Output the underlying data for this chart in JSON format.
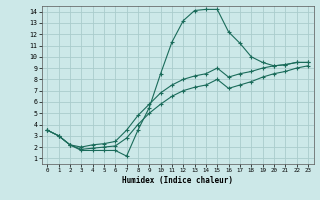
{
  "xlabel": "Humidex (Indice chaleur)",
  "bg_color": "#cce8e8",
  "grid_color": "#aacccc",
  "line_color": "#1a6b5a",
  "xlim": [
    -0.5,
    23.5
  ],
  "ylim": [
    0.5,
    14.5
  ],
  "xticks": [
    0,
    1,
    2,
    3,
    4,
    5,
    6,
    7,
    8,
    9,
    10,
    11,
    12,
    13,
    14,
    15,
    16,
    17,
    18,
    19,
    20,
    21,
    22,
    23
  ],
  "yticks": [
    1,
    2,
    3,
    4,
    5,
    6,
    7,
    8,
    9,
    10,
    11,
    12,
    13,
    14
  ],
  "curve1_x": [
    0,
    1,
    2,
    3,
    4,
    5,
    6,
    7,
    8,
    9,
    10,
    11,
    12,
    13,
    14,
    15,
    16,
    17,
    18,
    19,
    20,
    21,
    22,
    23
  ],
  "curve1_y": [
    3.5,
    3.0,
    2.2,
    1.7,
    1.7,
    1.7,
    1.7,
    1.2,
    3.5,
    5.5,
    8.5,
    11.3,
    13.2,
    14.1,
    14.2,
    14.2,
    12.2,
    11.2,
    10.0,
    9.5,
    9.2,
    9.3,
    9.5,
    9.5
  ],
  "curve2_x": [
    0,
    1,
    2,
    3,
    4,
    5,
    6,
    7,
    8,
    9,
    10,
    11,
    12,
    13,
    14,
    15,
    16,
    17,
    18,
    19,
    20,
    21,
    22,
    23
  ],
  "curve2_y": [
    3.5,
    3.0,
    2.2,
    2.0,
    2.2,
    2.3,
    2.5,
    3.5,
    4.8,
    5.8,
    6.8,
    7.5,
    8.0,
    8.3,
    8.5,
    9.0,
    8.2,
    8.5,
    8.7,
    9.0,
    9.2,
    9.3,
    9.5,
    9.5
  ],
  "curve3_x": [
    0,
    1,
    2,
    3,
    4,
    5,
    6,
    7,
    8,
    9,
    10,
    11,
    12,
    13,
    14,
    15,
    16,
    17,
    18,
    19,
    20,
    21,
    22,
    23
  ],
  "curve3_y": [
    3.5,
    3.0,
    2.2,
    1.8,
    1.9,
    2.0,
    2.1,
    2.8,
    4.0,
    5.0,
    5.8,
    6.5,
    7.0,
    7.3,
    7.5,
    8.0,
    7.2,
    7.5,
    7.8,
    8.2,
    8.5,
    8.7,
    9.0,
    9.2
  ]
}
